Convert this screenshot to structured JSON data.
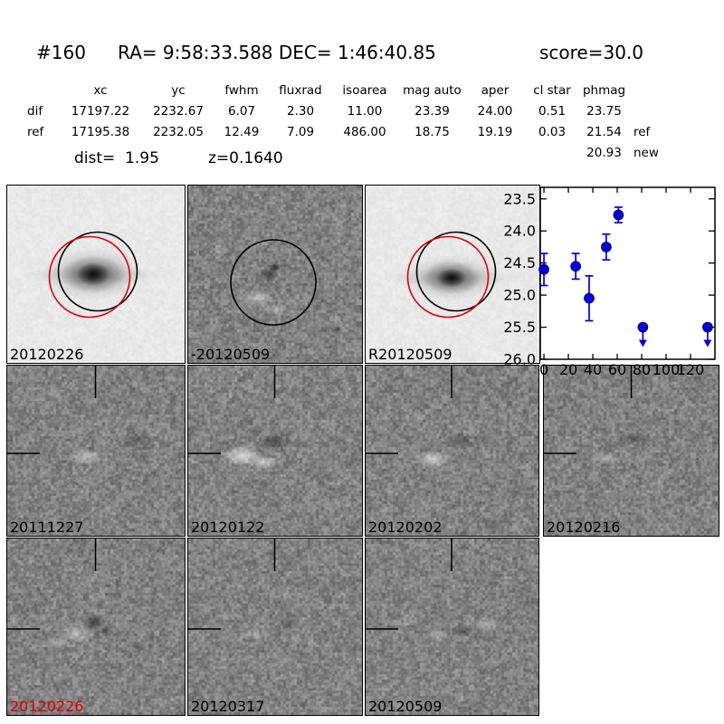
{
  "title": {
    "id": "#160",
    "coords": "RA= 9:58:33.588 DEC= 1:46:40.85",
    "score": "score=30.0"
  },
  "photometry_table": {
    "headers": [
      "xc",
      "yc",
      "fwhm",
      "fluxrad",
      "isoarea",
      "mag auto",
      "aper",
      "cl star",
      "phmag"
    ],
    "rows": [
      {
        "label": "dif",
        "xc": "17197.22",
        "yc": "2232.67",
        "fwhm": "6.07",
        "fluxrad": "2.30",
        "isoarea": "11.00",
        "mag_auto": "23.39",
        "aper": "24.00",
        "cl_star": "0.51",
        "phmag": "23.75",
        "suffix": ""
      },
      {
        "label": "ref",
        "xc": "17195.38",
        "yc": "2232.05",
        "fwhm": "12.49",
        "fluxrad": "7.09",
        "isoarea": "486.00",
        "mag_auto": "18.75",
        "aper": "19.19",
        "cl_star": "0.03",
        "phmag": "21.54",
        "suffix": "ref"
      }
    ],
    "extra": {
      "phmag": "20.93",
      "suffix": "new"
    },
    "dist": "dist=  1.95",
    "redshift": "z=0.1640"
  },
  "panels": [
    {
      "label": "20120226",
      "label_color": "#000000",
      "kind": "reference-with-apertures"
    },
    {
      "label": "-20120509",
      "label_color": "#000000",
      "kind": "difference-with-aperture"
    },
    {
      "label": "R20120509",
      "label_color": "#000000",
      "kind": "reference-with-apertures"
    },
    {
      "label": "20111227",
      "label_color": "#000000",
      "kind": "difference"
    },
    {
      "label": "20120122",
      "label_color": "#000000",
      "kind": "difference"
    },
    {
      "label": "20120202",
      "label_color": "#000000",
      "kind": "difference"
    },
    {
      "label": "20120216",
      "label_color": "#000000",
      "kind": "difference"
    },
    {
      "label": "20120226",
      "label_color": "#e00000",
      "kind": "difference"
    },
    {
      "label": "20120317",
      "label_color": "#000000",
      "kind": "difference"
    },
    {
      "label": "20120509",
      "label_color": "#000000",
      "kind": "difference"
    }
  ],
  "chart_data": {
    "type": "scatter",
    "title": "",
    "xlabel": "",
    "ylabel": "",
    "x_days": [
      0,
      26,
      37,
      51,
      61,
      81,
      134
    ],
    "mag": [
      24.6,
      24.55,
      25.05,
      24.25,
      23.75,
      25.5,
      25.5
    ],
    "mag_err": [
      0.25,
      0.2,
      0.35,
      0.2,
      0.12,
      null,
      null
    ],
    "upper_limit": [
      false,
      false,
      false,
      false,
      false,
      true,
      true
    ],
    "xticks": [
      "0",
      "20",
      "40",
      "60",
      "80",
      "100",
      "120"
    ],
    "ytick_vals": [
      23.5,
      24.0,
      24.5,
      25.0,
      25.5,
      26.0
    ],
    "yticks": [
      "23.5",
      "24.0",
      "24.5",
      "25.0",
      "25.5",
      "26.0"
    ],
    "xlim": [
      -3,
      140
    ],
    "ylim": [
      26.0,
      23.32
    ],
    "y_axis_inverted": true,
    "grid": false,
    "legend": null,
    "marker_color": "#0000dd",
    "aperture_colors": {
      "reference": "#000000",
      "candidate": "#e00000"
    }
  }
}
